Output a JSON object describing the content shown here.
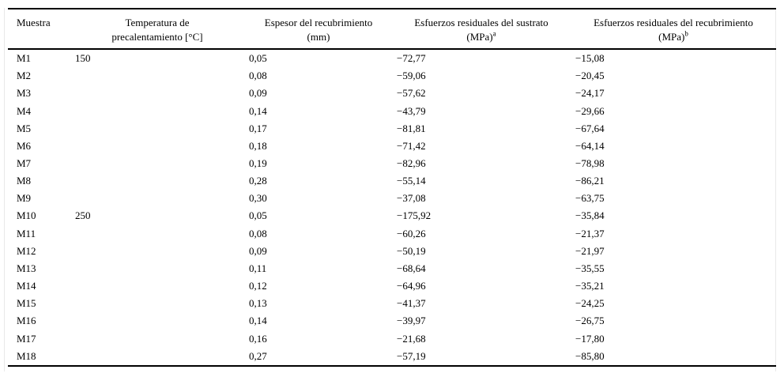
{
  "table": {
    "headers": {
      "muestra": {
        "line1": "Muestra",
        "line2": ""
      },
      "temperatura": {
        "line1": "Temperatura de",
        "line2": "precalentamiento [°C]"
      },
      "espesor": {
        "line1": "Espesor del recubrimiento",
        "line2": "(mm)"
      },
      "sustrato": {
        "line1": "Esfuerzos residuales del sustrato",
        "line2": "(MPa)",
        "sup": "a"
      },
      "recubrimiento": {
        "line1": "Esfuerzos residuales del recubrimiento",
        "line2": "(MPa)",
        "sup": "b"
      }
    },
    "rows": [
      {
        "muestra": "M1",
        "temperatura": "150",
        "espesor": "0,05",
        "sustrato": "−72,77",
        "recubrimiento": "−15,08"
      },
      {
        "muestra": "M2",
        "temperatura": "",
        "espesor": "0,08",
        "sustrato": "−59,06",
        "recubrimiento": "−20,45"
      },
      {
        "muestra": "M3",
        "temperatura": "",
        "espesor": "0,09",
        "sustrato": "−57,62",
        "recubrimiento": "−24,17"
      },
      {
        "muestra": "M4",
        "temperatura": "",
        "espesor": "0,14",
        "sustrato": "−43,79",
        "recubrimiento": "−29,66"
      },
      {
        "muestra": "M5",
        "temperatura": "",
        "espesor": "0,17",
        "sustrato": "−81,81",
        "recubrimiento": "−67,64"
      },
      {
        "muestra": "M6",
        "temperatura": "",
        "espesor": "0,18",
        "sustrato": "−71,42",
        "recubrimiento": "−64,14"
      },
      {
        "muestra": "M7",
        "temperatura": "",
        "espesor": "0,19",
        "sustrato": "−82,96",
        "recubrimiento": "−78,98"
      },
      {
        "muestra": "M8",
        "temperatura": "",
        "espesor": "0,28",
        "sustrato": "−55,14",
        "recubrimiento": "−86,21"
      },
      {
        "muestra": "M9",
        "temperatura": "",
        "espesor": "0,30",
        "sustrato": "−37,08",
        "recubrimiento": "−63,75"
      },
      {
        "muestra": "M10",
        "temperatura": "250",
        "espesor": "0,05",
        "sustrato": "−175,92",
        "recubrimiento": "−35,84"
      },
      {
        "muestra": "M11",
        "temperatura": "",
        "espesor": "0,08",
        "sustrato": "−60,26",
        "recubrimiento": "−21,37"
      },
      {
        "muestra": "M12",
        "temperatura": "",
        "espesor": "0,09",
        "sustrato": "−50,19",
        "recubrimiento": "−21,97"
      },
      {
        "muestra": "M13",
        "temperatura": "",
        "espesor": "0,11",
        "sustrato": "−68,64",
        "recubrimiento": "−35,55"
      },
      {
        "muestra": "M14",
        "temperatura": "",
        "espesor": "0,12",
        "sustrato": "−64,96",
        "recubrimiento": "−35,21"
      },
      {
        "muestra": "M15",
        "temperatura": "",
        "espesor": "0,13",
        "sustrato": "−41,37",
        "recubrimiento": "−24,25"
      },
      {
        "muestra": "M16",
        "temperatura": "",
        "espesor": "0,14",
        "sustrato": "−39,97",
        "recubrimiento": "−26,75"
      },
      {
        "muestra": "M17",
        "temperatura": "",
        "espesor": "0,16",
        "sustrato": "−21,68",
        "recubrimiento": "−17,80"
      },
      {
        "muestra": "M18",
        "temperatura": "",
        "espesor": "0,27",
        "sustrato": "−57,19",
        "recubrimiento": "−85,80"
      }
    ],
    "column_keys": [
      "muestra",
      "temperatura",
      "espesor",
      "sustrato",
      "recubrimiento"
    ]
  },
  "colors": {
    "rule": "#000000",
    "frame_line": "#e9e9e9",
    "background": "#ffffff",
    "text": "#000000"
  }
}
